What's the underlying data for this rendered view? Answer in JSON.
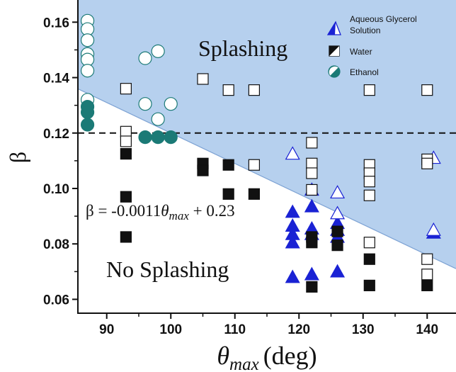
{
  "chart_data": {
    "type": "scatter",
    "xlabel_main": "θ",
    "xlabel_sub": "max",
    "xlabel_unit": "(deg)",
    "ylabel": "β",
    "xlim": [
      85.5,
      144.5
    ],
    "ylim": [
      0.055,
      0.168
    ],
    "x_ticks": [
      90,
      100,
      110,
      120,
      130,
      140
    ],
    "x_tick_labels": [
      "90",
      "100",
      "110",
      "120",
      "130",
      "140"
    ],
    "y_ticks": [
      0.06,
      0.08,
      0.1,
      0.12,
      0.14,
      0.16
    ],
    "y_tick_labels": [
      "0.06",
      "0.08",
      "0.10",
      "0.12",
      "0.14",
      "0.16"
    ],
    "threshold_line": {
      "y": 0.12,
      "style": "dashed"
    },
    "boundary": {
      "slope": -0.0011,
      "intercept": 0.23,
      "shade_above": true,
      "shade_color": "#b6d0ee",
      "line_color": "#7ea3d4"
    },
    "annotations": {
      "region_above": "Splashing",
      "region_below": "No Splashing",
      "equation": {
        "prefix": "β = -0.0011",
        "symbol": "θ",
        "sub": "max",
        "suffix": " + 0.23"
      }
    },
    "legend": [
      {
        "label_lines": [
          "Aqueous Glycerol",
          "Solution"
        ],
        "marker": "triangle",
        "color": "#1a22d4"
      },
      {
        "label_lines": [
          "Water"
        ],
        "marker": "square",
        "color": "#111111"
      },
      {
        "label_lines": [
          "Ethanol"
        ],
        "marker": "circle",
        "color": "#1b7a76"
      }
    ],
    "series": [
      {
        "name": "Aqueous Glycerol Solution",
        "marker": "triangle",
        "color": "#1a22d4",
        "points": [
          {
            "x": 119,
            "y": 0.0915,
            "f": true
          },
          {
            "x": 119,
            "y": 0.0865,
            "f": true
          },
          {
            "x": 119,
            "y": 0.0835,
            "f": true
          },
          {
            "x": 119,
            "y": 0.0805,
            "f": true
          },
          {
            "x": 119,
            "y": 0.068,
            "f": true
          },
          {
            "x": 122,
            "y": 0.0995,
            "f": true
          },
          {
            "x": 122,
            "y": 0.0935,
            "f": true
          },
          {
            "x": 122,
            "y": 0.0855,
            "f": true
          },
          {
            "x": 122,
            "y": 0.0835,
            "f": true
          },
          {
            "x": 122,
            "y": 0.069,
            "f": true
          },
          {
            "x": 126,
            "y": 0.0875,
            "f": true
          },
          {
            "x": 126,
            "y": 0.085,
            "f": true
          },
          {
            "x": 126,
            "y": 0.0825,
            "f": true
          },
          {
            "x": 126,
            "y": 0.07,
            "f": true
          },
          {
            "x": 141,
            "y": 0.084,
            "f": true
          },
          {
            "x": 119,
            "y": 0.1125,
            "f": false
          },
          {
            "x": 126,
            "y": 0.0985,
            "f": false
          },
          {
            "x": 126,
            "y": 0.091,
            "f": false
          },
          {
            "x": 141,
            "y": 0.111,
            "f": false
          },
          {
            "x": 141,
            "y": 0.085,
            "f": false
          }
        ]
      },
      {
        "name": "Water",
        "marker": "square",
        "color": "#111111",
        "points": [
          {
            "x": 93,
            "y": 0.136,
            "f": false
          },
          {
            "x": 93,
            "y": 0.1205,
            "f": false
          },
          {
            "x": 93,
            "y": 0.117,
            "f": false
          },
          {
            "x": 105,
            "y": 0.1395,
            "f": false
          },
          {
            "x": 109,
            "y": 0.1355,
            "f": false
          },
          {
            "x": 113,
            "y": 0.1355,
            "f": false
          },
          {
            "x": 113,
            "y": 0.1085,
            "f": false
          },
          {
            "x": 122,
            "y": 0.1165,
            "f": false
          },
          {
            "x": 122,
            "y": 0.109,
            "f": false
          },
          {
            "x": 122,
            "y": 0.1055,
            "f": false
          },
          {
            "x": 122,
            "y": 0.0995,
            "f": false
          },
          {
            "x": 131,
            "y": 0.1355,
            "f": false
          },
          {
            "x": 131,
            "y": 0.1085,
            "f": false
          },
          {
            "x": 131,
            "y": 0.1055,
            "f": false
          },
          {
            "x": 131,
            "y": 0.1025,
            "f": false
          },
          {
            "x": 131,
            "y": 0.0975,
            "f": false
          },
          {
            "x": 131,
            "y": 0.0805,
            "f": false
          },
          {
            "x": 140,
            "y": 0.1355,
            "f": false
          },
          {
            "x": 140,
            "y": 0.1105,
            "f": false
          },
          {
            "x": 140,
            "y": 0.109,
            "f": false
          },
          {
            "x": 140,
            "y": 0.0745,
            "f": false
          },
          {
            "x": 140,
            "y": 0.069,
            "f": false
          },
          {
            "x": 93,
            "y": 0.1125,
            "f": true
          },
          {
            "x": 93,
            "y": 0.097,
            "f": true
          },
          {
            "x": 93,
            "y": 0.0825,
            "f": true
          },
          {
            "x": 105,
            "y": 0.109,
            "f": true
          },
          {
            "x": 105,
            "y": 0.1065,
            "f": true
          },
          {
            "x": 109,
            "y": 0.1085,
            "f": true
          },
          {
            "x": 109,
            "y": 0.098,
            "f": true
          },
          {
            "x": 113,
            "y": 0.098,
            "f": true
          },
          {
            "x": 122,
            "y": 0.0825,
            "f": true
          },
          {
            "x": 122,
            "y": 0.0805,
            "f": true
          },
          {
            "x": 122,
            "y": 0.0645,
            "f": true
          },
          {
            "x": 126,
            "y": 0.0845,
            "f": true
          },
          {
            "x": 126,
            "y": 0.0795,
            "f": true
          },
          {
            "x": 131,
            "y": 0.0745,
            "f": true
          },
          {
            "x": 131,
            "y": 0.065,
            "f": true
          },
          {
            "x": 140,
            "y": 0.065,
            "f": true
          }
        ]
      },
      {
        "name": "Ethanol",
        "marker": "circle",
        "color": "#1b7a76",
        "points": [
          {
            "x": 87,
            "y": 0.1605,
            "f": false
          },
          {
            "x": 87,
            "y": 0.1575,
            "f": false
          },
          {
            "x": 87,
            "y": 0.1535,
            "f": false
          },
          {
            "x": 87,
            "y": 0.1485,
            "f": false
          },
          {
            "x": 87,
            "y": 0.1465,
            "f": false
          },
          {
            "x": 87,
            "y": 0.1425,
            "f": false
          },
          {
            "x": 87,
            "y": 0.132,
            "f": false
          },
          {
            "x": 96,
            "y": 0.147,
            "f": false
          },
          {
            "x": 98,
            "y": 0.1495,
            "f": false
          },
          {
            "x": 96,
            "y": 0.1305,
            "f": false
          },
          {
            "x": 100,
            "y": 0.1305,
            "f": false
          },
          {
            "x": 98,
            "y": 0.125,
            "f": false
          },
          {
            "x": 87,
            "y": 0.1295,
            "f": true
          },
          {
            "x": 87,
            "y": 0.1275,
            "f": true
          },
          {
            "x": 87,
            "y": 0.123,
            "f": true
          },
          {
            "x": 96,
            "y": 0.1185,
            "f": true
          },
          {
            "x": 98,
            "y": 0.1185,
            "f": true
          },
          {
            "x": 100,
            "y": 0.1185,
            "f": true
          }
        ]
      }
    ]
  }
}
